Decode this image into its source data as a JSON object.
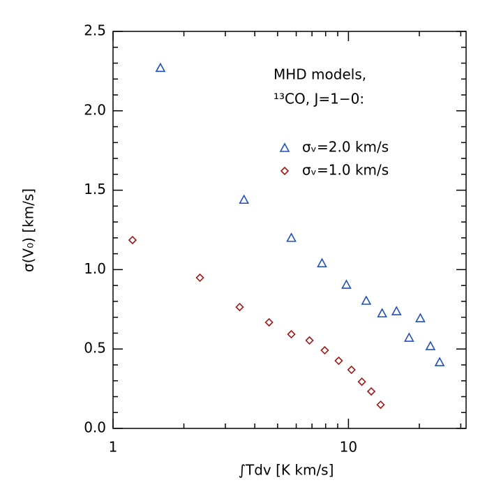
{
  "chart_data": {
    "type": "scatter",
    "x_label": "∫Tdv [K km/s]",
    "y_label": "σ(V₀) [km/s]",
    "annotations": [
      "MHD models,",
      "¹³CO, J=1−0:"
    ],
    "xscale": "log",
    "xlim": [
      1,
      31.6
    ],
    "ylim": [
      0,
      2.5
    ],
    "xticks": [
      1,
      10
    ],
    "xminorticks": [
      2,
      3,
      4,
      5,
      6,
      7,
      8,
      9,
      20,
      30
    ],
    "yticks": [
      {
        "value": 0,
        "label": "0.0"
      },
      0.5,
      {
        "value": 1,
        "label": "1.0"
      },
      1.5,
      {
        "value": 2,
        "label": "2.0"
      },
      2.5
    ],
    "yminorticks": [
      0.1,
      0.2,
      0.3,
      0.4,
      0.6,
      0.7,
      0.8,
      0.9,
      1.1,
      1.2,
      1.3,
      1.4,
      1.6,
      1.7,
      1.8,
      1.9,
      2.1,
      2.2,
      2.3,
      2.4
    ],
    "series": [
      {
        "name": "σᵥ=2.0 km/s",
        "color": "#1f4fbf",
        "marker": "triangle",
        "x": [
          1.59,
          3.6,
          5.72,
          7.72,
          9.8,
          11.9,
          13.9,
          16.0,
          18.1,
          20.2,
          22.3,
          24.4
        ],
        "values": [
          2.27,
          1.44,
          1.2,
          1.04,
          0.905,
          0.804,
          0.725,
          0.738,
          0.571,
          0.694,
          0.518,
          0.417
        ]
      },
      {
        "name": "σᵥ=1.0 km/s",
        "color": "#a01515",
        "marker": "diamond",
        "x": [
          1.21,
          2.34,
          3.45,
          4.6,
          5.72,
          6.83,
          7.93,
          9.09,
          10.3,
          11.4,
          12.5,
          13.7
        ],
        "values": [
          1.186,
          0.949,
          0.764,
          0.668,
          0.593,
          0.554,
          0.492,
          0.426,
          0.369,
          0.294,
          0.233,
          0.149
        ]
      }
    ]
  }
}
